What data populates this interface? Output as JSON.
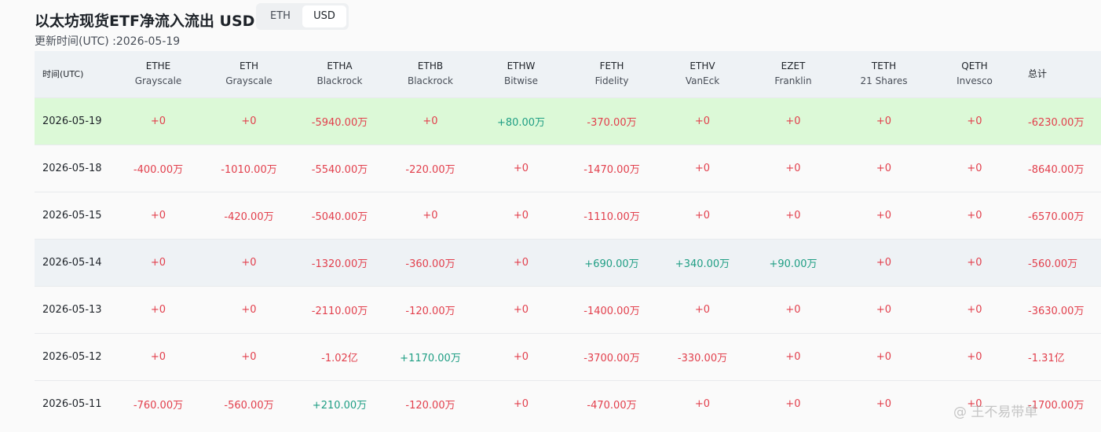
{
  "title": "以太坊现货ETF净流入流出 USD",
  "toggle": {
    "options": [
      "ETH",
      "USD"
    ],
    "selected": "USD"
  },
  "updated": "更新时间(UTC) :2026-05-19",
  "colors": {
    "negative": "#e23f4c",
    "positive": "#1f9e84",
    "highlight_green": "#dcf9d7",
    "highlight_blue": "#eef2f5"
  },
  "table": {
    "date_header": "时间(UTC)",
    "total_header": "总计",
    "funds": [
      {
        "ticker": "ETHE",
        "issuer": "Grayscale"
      },
      {
        "ticker": "ETH",
        "issuer": "Grayscale"
      },
      {
        "ticker": "ETHA",
        "issuer": "Blackrock"
      },
      {
        "ticker": "ETHB",
        "issuer": "Blackrock"
      },
      {
        "ticker": "ETHW",
        "issuer": "Bitwise"
      },
      {
        "ticker": "FETH",
        "issuer": "Fidelity"
      },
      {
        "ticker": "ETHV",
        "issuer": "VanEck"
      },
      {
        "ticker": "EZET",
        "issuer": "Franklin"
      },
      {
        "ticker": "TETH",
        "issuer": "21 Shares"
      },
      {
        "ticker": "QETH",
        "issuer": "Invesco"
      }
    ],
    "rows": [
      {
        "date": "2026-05-19",
        "highlight": "green",
        "values": [
          "+0",
          "+0",
          "-5940.00万",
          "+0",
          "+80.00万",
          "-370.00万",
          "+0",
          "+0",
          "+0",
          "+0"
        ],
        "total": "-6230.00万"
      },
      {
        "date": "2026-05-18",
        "highlight": "",
        "values": [
          "-400.00万",
          "-1010.00万",
          "-5540.00万",
          "-220.00万",
          "+0",
          "-1470.00万",
          "+0",
          "+0",
          "+0",
          "+0"
        ],
        "total": "-8640.00万"
      },
      {
        "date": "2026-05-15",
        "highlight": "",
        "values": [
          "+0",
          "-420.00万",
          "-5040.00万",
          "+0",
          "+0",
          "-1110.00万",
          "+0",
          "+0",
          "+0",
          "+0"
        ],
        "total": "-6570.00万"
      },
      {
        "date": "2026-05-14",
        "highlight": "blue",
        "values": [
          "+0",
          "+0",
          "-1320.00万",
          "-360.00万",
          "+0",
          "+690.00万",
          "+340.00万",
          "+90.00万",
          "+0",
          "+0"
        ],
        "total": "-560.00万"
      },
      {
        "date": "2026-05-13",
        "highlight": "",
        "values": [
          "+0",
          "+0",
          "-2110.00万",
          "-120.00万",
          "+0",
          "-1400.00万",
          "+0",
          "+0",
          "+0",
          "+0"
        ],
        "total": "-3630.00万"
      },
      {
        "date": "2026-05-12",
        "highlight": "",
        "values": [
          "+0",
          "+0",
          "-1.02亿",
          "+1170.00万",
          "+0",
          "-3700.00万",
          "-330.00万",
          "+0",
          "+0",
          "+0"
        ],
        "total": "-1.31亿"
      },
      {
        "date": "2026-05-11",
        "highlight": "",
        "values": [
          "-760.00万",
          "-560.00万",
          "+210.00万",
          "-120.00万",
          "+0",
          "-470.00万",
          "+0",
          "+0",
          "+0",
          "+0"
        ],
        "total": "-1700.00万"
      }
    ]
  },
  "watermark": "@ 王不易带单"
}
